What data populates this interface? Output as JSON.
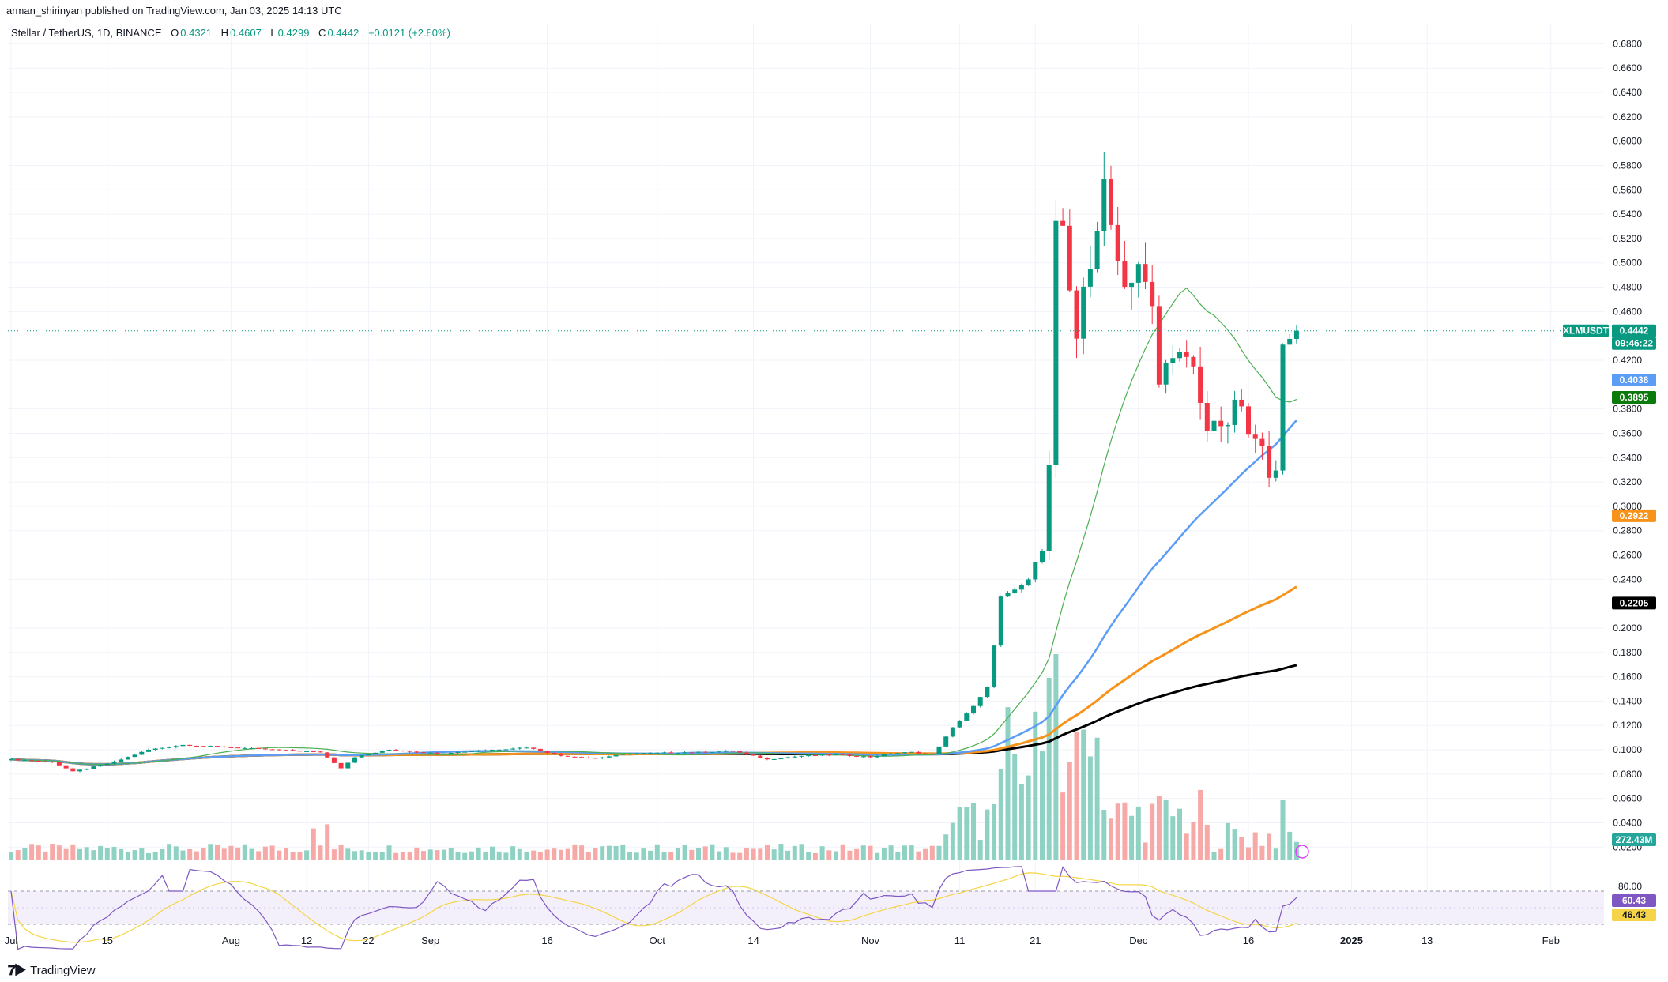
{
  "header": {
    "published_by": "arman_shirinyan published on TradingView.com, Jan 03, 2025 14:13 UTC"
  },
  "legend": {
    "symbol": "Stellar / TetherUS, 1D, BINANCE",
    "open_label": "O",
    "open": "0.4321",
    "high_label": "H",
    "high": "0.4607",
    "low_label": "L",
    "low": "0.4299",
    "close_label": "C",
    "close": "0.4442",
    "change": "+0.0121 (+2.80%)"
  },
  "footer": {
    "brand": "TradingView"
  },
  "colors": {
    "up": "#089981",
    "down": "#f23645",
    "up_volume": "#8fd2c4",
    "down_volume": "#f7a9a7",
    "ma_black": "#000000",
    "ma_orange": "#f7931a",
    "ma_blue": "#5b9cf6",
    "ma_green": "#4caf50",
    "rsi_line": "#7e57c2",
    "rsi_ma": "#f5d547"
  },
  "chart_data": {
    "type": "candlestick",
    "symbol": "XLMUSDT",
    "interval": "1D",
    "x_tick_labels": [
      "Jul",
      "15",
      "Aug",
      "12",
      "22",
      "Sep",
      "16",
      "Oct",
      "14",
      "Nov",
      "11",
      "21",
      "Dec",
      "16",
      "2025",
      "13",
      "Feb"
    ],
    "y_tick_labels": [
      "0.6800",
      "0.6600",
      "0.6400",
      "0.6200",
      "0.6000",
      "0.5800",
      "0.5600",
      "0.5400",
      "0.5200",
      "0.5000",
      "0.4800",
      "0.4600",
      "0.4200",
      "0.3800",
      "0.3600",
      "0.3400",
      "0.3200",
      "0.3000",
      "0.2800",
      "0.2600",
      "0.2400",
      "0.2000",
      "0.1800",
      "0.1600",
      "0.1400",
      "0.1200",
      "0.1000",
      "0.0800",
      "0.0600",
      "0.0400",
      "0.0200"
    ],
    "ylim": [
      0.015,
      0.69
    ],
    "last_price": {
      "label": "XLMUSDT",
      "value": "0.4442",
      "countdown": "09:46:22"
    },
    "ma_values": [
      {
        "value": "0.4038",
        "color": "#5b9cf6"
      },
      {
        "value": "0.3895",
        "color": "#0a7a0a"
      },
      {
        "value": "0.2922",
        "color": "#f7931a"
      },
      {
        "value": "0.2205",
        "color": "#000000"
      }
    ],
    "volume_label": "272.43M",
    "rsi": {
      "levels": [
        "80.00"
      ],
      "value": "60.43",
      "ma_value": "46.43",
      "band": [
        30,
        70
      ]
    },
    "anchors": [
      [
        0,
        0.092
      ],
      [
        6,
        0.09
      ],
      [
        9,
        0.082
      ],
      [
        15,
        0.09
      ],
      [
        20,
        0.1
      ],
      [
        25,
        0.104
      ],
      [
        35,
        0.101
      ],
      [
        45,
        0.098
      ],
      [
        48,
        0.085
      ],
      [
        50,
        0.094
      ],
      [
        55,
        0.1
      ],
      [
        62,
        0.097
      ],
      [
        70,
        0.1
      ],
      [
        75,
        0.102
      ],
      [
        80,
        0.095
      ],
      [
        85,
        0.093
      ],
      [
        90,
        0.097
      ],
      [
        100,
        0.098
      ],
      [
        105,
        0.099
      ],
      [
        110,
        0.092
      ],
      [
        115,
        0.095
      ],
      [
        120,
        0.096
      ],
      [
        125,
        0.094
      ],
      [
        128,
        0.097
      ],
      [
        131,
        0.098
      ],
      [
        134,
        0.096
      ],
      [
        136,
        0.11
      ],
      [
        138,
        0.125
      ],
      [
        140,
        0.135
      ],
      [
        142,
        0.15
      ],
      [
        144,
        0.225
      ],
      [
        146,
        0.23
      ],
      [
        148,
        0.24
      ],
      [
        150,
        0.265
      ],
      [
        151,
        0.34
      ],
      [
        152,
        0.53
      ],
      [
        153,
        0.53
      ],
      [
        154,
        0.47
      ],
      [
        155,
        0.43
      ],
      [
        156,
        0.48
      ],
      [
        157,
        0.5
      ],
      [
        159,
        0.56
      ],
      [
        160,
        0.53
      ],
      [
        161,
        0.51
      ],
      [
        162,
        0.48
      ],
      [
        164,
        0.5
      ],
      [
        166,
        0.46
      ],
      [
        167,
        0.4
      ],
      [
        169,
        0.43
      ],
      [
        172,
        0.41
      ],
      [
        174,
        0.36
      ],
      [
        175,
        0.375
      ],
      [
        177,
        0.36
      ],
      [
        178,
        0.39
      ],
      [
        180,
        0.36
      ],
      [
        182,
        0.345
      ],
      [
        183,
        0.33
      ],
      [
        184,
        0.335
      ],
      [
        185,
        0.43
      ],
      [
        186,
        0.436
      ],
      [
        187,
        0.4442
      ]
    ]
  }
}
